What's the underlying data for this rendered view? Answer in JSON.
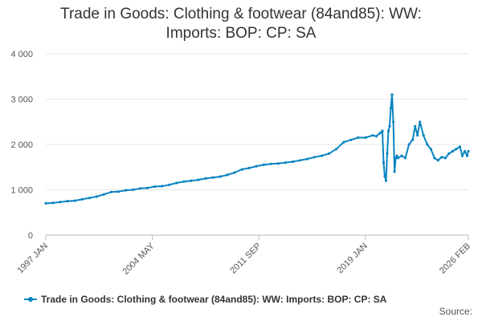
{
  "title_lines": [
    "Trade in Goods: Clothing & footwear (84and85): WW:",
    "Imports: BOP: CP: SA"
  ],
  "source_label": "Source:",
  "chart_data": {
    "type": "line",
    "title": "Trade in Goods: Clothing & footwear (84and85): WW: Imports: BOP: CP: SA",
    "xlabel": "",
    "ylabel": "",
    "ylim": [
      0,
      4000
    ],
    "yticks": [
      0,
      1000,
      2000,
      3000,
      4000
    ],
    "ytick_labels": [
      "0",
      "1 000",
      "2 000",
      "3 000",
      "4 000"
    ],
    "xlim": [
      "1997 JAN",
      "2026 FEB"
    ],
    "xticks": [
      "1997 JAN",
      "2004 MAY",
      "2011 SEP",
      "2019 JAN",
      "2026 FEB"
    ],
    "grid": true,
    "legend_position": "bottom",
    "series_color": "#0a84c1",
    "series": [
      {
        "name": "Trade in Goods: Clothing & footwear (84and85): WW: Imports: BOP: CP: SA",
        "x": [
          "1997 JAN",
          "1997 JUL",
          "1998 JAN",
          "1998 JUL",
          "1999 JAN",
          "1999 JUL",
          "2000 JAN",
          "2000 JUL",
          "2001 JAN",
          "2001 JUL",
          "2002 JAN",
          "2002 JUL",
          "2003 JAN",
          "2003 JUL",
          "2004 JAN",
          "2004 JUL",
          "2005 JAN",
          "2005 JUL",
          "2006 JAN",
          "2006 JUL",
          "2007 JAN",
          "2007 JUL",
          "2008 JAN",
          "2008 JUL",
          "2009 JAN",
          "2009 JUL",
          "2010 JAN",
          "2010 JUL",
          "2011 JAN",
          "2011 JUL",
          "2012 JAN",
          "2012 JUL",
          "2013 JAN",
          "2013 JUL",
          "2014 JAN",
          "2014 JUL",
          "2015 JAN",
          "2015 JUL",
          "2016 JAN",
          "2016 JUL",
          "2017 JAN",
          "2017 JUL",
          "2018 JAN",
          "2018 JUL",
          "2019 JAN",
          "2019 JUL",
          "2019 OCT",
          "2020 JAN",
          "2020 MAR",
          "2020 APR",
          "2020 MAY",
          "2020 JUN",
          "2020 JUL",
          "2020 AUG",
          "2020 SEP",
          "2020 OCT",
          "2020 NOV",
          "2020 DEC",
          "2021 JAN",
          "2021 FEB",
          "2021 MAR",
          "2021 APR",
          "2021 JUL",
          "2021 OCT",
          "2022 JAN",
          "2022 APR",
          "2022 JUN",
          "2022 AUG",
          "2022 OCT",
          "2023 JAN",
          "2023 APR",
          "2023 JUL",
          "2023 OCT",
          "2024 JAN",
          "2024 APR",
          "2024 JUL",
          "2024 OCT",
          "2025 JAN",
          "2025 APR",
          "2025 JUL",
          "2025 SEP",
          "2025 NOV",
          "2026 JAN",
          "2026 FEB"
        ],
        "values": [
          700,
          710,
          730,
          750,
          760,
          790,
          820,
          850,
          900,
          950,
          960,
          990,
          1000,
          1030,
          1040,
          1070,
          1080,
          1110,
          1150,
          1180,
          1200,
          1220,
          1250,
          1270,
          1290,
          1330,
          1380,
          1450,
          1480,
          1520,
          1550,
          1570,
          1580,
          1600,
          1620,
          1650,
          1680,
          1720,
          1750,
          1800,
          1900,
          2050,
          2100,
          2150,
          2150,
          2200,
          2180,
          2250,
          2300,
          1600,
          1300,
          1200,
          1800,
          2300,
          2400,
          2800,
          3100,
          2500,
          1400,
          1700,
          1750,
          1700,
          1750,
          1700,
          2000,
          2100,
          2400,
          2200,
          2500,
          2200,
          2000,
          1900,
          1700,
          1650,
          1720,
          1700,
          1800,
          1850,
          1900,
          1950,
          1750,
          1850,
          1750,
          1850
        ]
      }
    ]
  }
}
